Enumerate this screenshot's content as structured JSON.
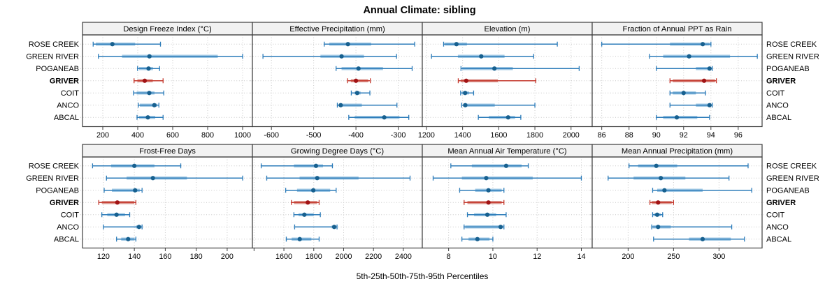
{
  "title": "Annual Climate: sibling",
  "xlabel": "5th-25th-50th-75th-95th Percentiles",
  "stations": [
    "ROSE CREEK",
    "GREEN RIVER",
    "POGANEAB",
    "GRIVER",
    "COIT",
    "ANCO",
    "ABCAL"
  ],
  "highlight_station": "GRIVER",
  "colors": {
    "blue_line": "#2b7bb9",
    "blue_band": "#a0c8e4",
    "blue_dot": "#17608f",
    "red_line": "#c4392e",
    "red_band": "#dc9790",
    "red_dot": "#a01315",
    "grid": "#c9c9c9",
    "panel_border": "#3c3c3c",
    "header_bg": "#f2f2f2",
    "text": "#000000"
  },
  "chart_data": [
    {
      "type": "dot-interval",
      "title": "Design Freeze Index (°C)",
      "row": 0,
      "col": 0,
      "ticks": [
        200,
        400,
        600,
        800,
        1000
      ],
      "domain": [
        84,
        1056
      ],
      "percentile_levels": [
        5,
        25,
        50,
        75,
        95
      ],
      "series": [
        {
          "name": "ROSE CREEK",
          "p": [
            145,
            160,
            255,
            385,
            530
          ]
        },
        {
          "name": "GREEN RIVER",
          "p": [
            175,
            310,
            467,
            858,
            1000
          ]
        },
        {
          "name": "POGANEAB",
          "p": [
            399,
            408,
            462,
            487,
            525
          ]
        },
        {
          "name": "GRIVER",
          "p": [
            379,
            398,
            440,
            486,
            545
          ]
        },
        {
          "name": "COIT",
          "p": [
            376,
            394,
            466,
            496,
            549
          ]
        },
        {
          "name": "ANCO",
          "p": [
            403,
            412,
            495,
            512,
            521
          ]
        },
        {
          "name": "ABCAL",
          "p": [
            396,
            408,
            458,
            500,
            545
          ]
        }
      ]
    },
    {
      "type": "dot-interval",
      "title": "Effective Precipitation (mm)",
      "row": 0,
      "col": 1,
      "ticks": [
        -600,
        -500,
        -400,
        -300
      ],
      "domain": [
        -645,
        -243
      ],
      "percentile_levels": [
        5,
        25,
        50,
        75,
        95
      ],
      "series": [
        {
          "name": "ROSE CREEK",
          "p": [
            -475,
            -463,
            -419,
            -364,
            -261
          ]
        },
        {
          "name": "GREEN RIVER",
          "p": [
            -620,
            -484,
            -434,
            -381,
            -304
          ]
        },
        {
          "name": "POGANEAB",
          "p": [
            -447,
            -434,
            -394,
            -336,
            -267
          ]
        },
        {
          "name": "GRIVER",
          "p": [
            -420,
            -412,
            -400,
            -371,
            -366
          ]
        },
        {
          "name": "COIT",
          "p": [
            -411,
            -403,
            -397,
            -389,
            -367
          ]
        },
        {
          "name": "ANCO",
          "p": [
            -444,
            -439,
            -436,
            -386,
            -303
          ]
        },
        {
          "name": "ABCAL",
          "p": [
            -417,
            -403,
            -333,
            -297,
            -275
          ]
        }
      ]
    },
    {
      "type": "dot-interval",
      "title": "Elevation (m)",
      "row": 0,
      "col": 2,
      "ticks": [
        1200,
        1400,
        1600,
        1800,
        2000
      ],
      "domain": [
        1177,
        2117
      ],
      "percentile_levels": [
        5,
        25,
        50,
        75,
        95
      ],
      "series": [
        {
          "name": "ROSE CREEK",
          "p": [
            1295,
            1302,
            1366,
            1424,
            1924
          ]
        },
        {
          "name": "GREEN RIVER",
          "p": [
            1228,
            1374,
            1503,
            1632,
            1793
          ]
        },
        {
          "name": "POGANEAB",
          "p": [
            1391,
            1398,
            1576,
            1678,
            2045
          ]
        },
        {
          "name": "GRIVER",
          "p": [
            1376,
            1390,
            1420,
            1595,
            1805
          ]
        },
        {
          "name": "COIT",
          "p": [
            1389,
            1397,
            1414,
            1436,
            1461
          ]
        },
        {
          "name": "ANCO",
          "p": [
            1395,
            1402,
            1415,
            1578,
            1800
          ]
        },
        {
          "name": "ABCAL",
          "p": [
            1487,
            1545,
            1652,
            1690,
            1722
          ]
        }
      ]
    },
    {
      "type": "dot-interval",
      "title": "Fraction of Annual PPT as Rain",
      "row": 0,
      "col": 3,
      "ticks": [
        86,
        88,
        90,
        92,
        94,
        96
      ],
      "domain": [
        85.3,
        97.75
      ],
      "percentile_levels": [
        5,
        25,
        50,
        75,
        95
      ],
      "series": [
        {
          "name": "ROSE CREEK",
          "p": [
            86,
            91,
            93.4,
            93.9,
            94
          ]
        },
        {
          "name": "GREEN RIVER",
          "p": [
            89.5,
            90.5,
            92.4,
            95.4,
            97.4
          ]
        },
        {
          "name": "POGANEAB",
          "p": [
            90,
            92.9,
            93.9,
            94,
            94.1
          ]
        },
        {
          "name": "GRIVER",
          "p": [
            91,
            91.2,
            93.5,
            94.3,
            94.4
          ]
        },
        {
          "name": "COIT",
          "p": [
            91,
            91.2,
            92,
            92.9,
            93.6
          ]
        },
        {
          "name": "ANCO",
          "p": [
            91,
            92.9,
            93.9,
            94,
            94.1
          ]
        },
        {
          "name": "ABCAL",
          "p": [
            90,
            90.5,
            91.5,
            93,
            93.9
          ]
        }
      ]
    },
    {
      "type": "dot-interval",
      "title": "Frost-Free Days",
      "row": 1,
      "col": 0,
      "ticks": [
        120,
        140,
        160,
        180,
        200
      ],
      "domain": [
        106.5,
        216.3
      ],
      "percentile_levels": [
        5,
        25,
        50,
        75,
        95
      ],
      "series": [
        {
          "name": "ROSE CREEK",
          "p": [
            113,
            125,
            140,
            153,
            170
          ]
        },
        {
          "name": "GREEN RIVER",
          "p": [
            122,
            135,
            152,
            174,
            210
          ]
        },
        {
          "name": "POGANEAB",
          "p": [
            120.5,
            125.5,
            140.5,
            143.5,
            145
          ]
        },
        {
          "name": "GRIVER",
          "p": [
            117,
            119,
            129,
            140,
            141
          ]
        },
        {
          "name": "COIT",
          "p": [
            119,
            122.5,
            128.5,
            134,
            137
          ]
        },
        {
          "name": "ANCO",
          "p": [
            120,
            141,
            143,
            144.5,
            145
          ]
        },
        {
          "name": "ABCAL",
          "p": [
            128.5,
            131.5,
            136,
            140,
            141
          ]
        }
      ]
    },
    {
      "type": "dot-interval",
      "title": "Growing Degree Days (°C)",
      "row": 1,
      "col": 1,
      "ticks": [
        1600,
        1800,
        2000,
        2200,
        2400
      ],
      "extra_ticks": [
        1400
      ],
      "domain": [
        1389,
        2527
      ],
      "percentile_levels": [
        5,
        25,
        50,
        75,
        95
      ],
      "series": [
        {
          "name": "ROSE CREEK",
          "p": [
            1448,
            1667,
            1815,
            1862,
            1925
          ]
        },
        {
          "name": "GREEN RIVER",
          "p": [
            1485,
            1705,
            1823,
            2100,
            2445
          ]
        },
        {
          "name": "POGANEAB",
          "p": [
            1612,
            1688,
            1797,
            1910,
            1950
          ]
        },
        {
          "name": "GRIVER",
          "p": [
            1650,
            1667,
            1760,
            1823,
            1836
          ]
        },
        {
          "name": "COIT",
          "p": [
            1667,
            1698,
            1737,
            1800,
            1844
          ]
        },
        {
          "name": "ANCO",
          "p": [
            1672,
            1920,
            1937,
            1950,
            1956
          ]
        },
        {
          "name": "ABCAL",
          "p": [
            1616,
            1652,
            1706,
            1784,
            1836
          ]
        }
      ]
    },
    {
      "type": "dot-interval",
      "title": "Mean Annual Air Temperature (°C)",
      "row": 1,
      "col": 2,
      "ticks": [
        8,
        10,
        12,
        14
      ],
      "domain": [
        6.81,
        14.49
      ],
      "percentile_levels": [
        5,
        25,
        50,
        75,
        95
      ],
      "series": [
        {
          "name": "ROSE CREEK",
          "p": [
            8.1,
            9.05,
            10.6,
            11.3,
            11.6
          ]
        },
        {
          "name": "GREEN RIVER",
          "p": [
            7.3,
            8.6,
            9.7,
            11.8,
            14
          ]
        },
        {
          "name": "POGANEAB",
          "p": [
            8.5,
            9.2,
            9.8,
            10.4,
            10.5
          ]
        },
        {
          "name": "GRIVER",
          "p": [
            8.7,
            8.85,
            9.8,
            10.4,
            10.5
          ]
        },
        {
          "name": "COIT",
          "p": [
            8.85,
            9.15,
            9.75,
            10.15,
            10.6
          ]
        },
        {
          "name": "ANCO",
          "p": [
            8.7,
            8.75,
            10.35,
            10.45,
            10.5
          ]
        },
        {
          "name": "ABCAL",
          "p": [
            8.6,
            8.9,
            9.3,
            9.85,
            10
          ]
        }
      ]
    },
    {
      "type": "dot-interval",
      "title": "Mean Annual Precipitation (mm)",
      "row": 1,
      "col": 3,
      "ticks": [
        200,
        250,
        300
      ],
      "domain": [
        160.5,
        347.4
      ],
      "percentile_levels": [
        5,
        25,
        50,
        75,
        95
      ],
      "series": [
        {
          "name": "ROSE CREEK",
          "p": [
            201,
            211,
            231,
            254,
            332
          ]
        },
        {
          "name": "GREEN RIVER",
          "p": [
            178,
            206,
            236,
            263,
            311
          ]
        },
        {
          "name": "POGANEAB",
          "p": [
            227,
            232,
            240,
            282,
            336
          ]
        },
        {
          "name": "GRIVER",
          "p": [
            224,
            226,
            233,
            248,
            250
          ]
        },
        {
          "name": "COIT",
          "p": [
            227,
            228.5,
            232,
            236,
            238
          ]
        },
        {
          "name": "ANCO",
          "p": [
            226,
            227,
            233,
            247,
            314
          ]
        },
        {
          "name": "ABCAL",
          "p": [
            228,
            267,
            282,
            313,
            328
          ]
        }
      ]
    }
  ]
}
